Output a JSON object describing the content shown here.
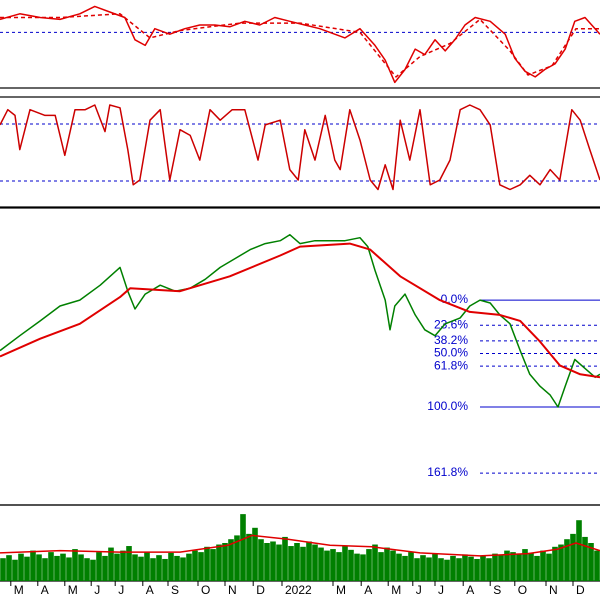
{
  "chart_data": [
    {
      "type": "line",
      "xlim": [
        0,
        100
      ],
      "ylim": [
        40,
        88
      ],
      "hlines": [
        70
      ],
      "hline_color": "#0000cc",
      "series": [
        {
          "color": "#e00000",
          "dashed": false,
          "x": [
            0,
            3.3,
            6.7,
            10,
            13.3,
            15.8,
            18.3,
            20.8,
            22.5,
            24.2,
            25.8,
            28.3,
            30.8,
            33.3,
            35.8,
            38.3,
            40.8,
            43.3,
            45.8,
            48.3,
            50.8,
            53.3,
            55.8,
            57.5,
            60,
            62.5,
            64.2,
            65.8,
            67.5,
            69.2,
            70.8,
            72.5,
            74.2,
            75.8,
            77.5,
            79.2,
            81.7,
            84.2,
            85.8,
            87.5,
            89.2,
            90.8,
            92.5,
            94.2,
            95.8,
            97.5,
            100
          ],
          "values": [
            77,
            80,
            78,
            77,
            80,
            84,
            81,
            78,
            66,
            63,
            72,
            69,
            72,
            74,
            74,
            73,
            76,
            74,
            78,
            76,
            74,
            72,
            69,
            67,
            72,
            63,
            55,
            43,
            50,
            61,
            58,
            66,
            60,
            66,
            74,
            78,
            76,
            69,
            56,
            49,
            46,
            50,
            53,
            61,
            76,
            78,
            69
          ]
        },
        {
          "color": "#e00000",
          "dashed": true,
          "x": [
            0,
            10,
            20,
            25,
            30,
            40,
            50,
            60,
            63,
            66,
            70,
            75,
            80,
            85,
            88,
            92,
            96,
            100
          ],
          "values": [
            78,
            78,
            80,
            67,
            71,
            75,
            75,
            70,
            58,
            46,
            57,
            64,
            77,
            60,
            47,
            52,
            72,
            72
          ]
        }
      ]
    },
    {
      "type": "line",
      "xlim": [
        0,
        100
      ],
      "ylim": [
        -7.4,
        108.4
      ],
      "hlines": [
        20,
        80
      ],
      "hline_color": "#0000cc",
      "series": [
        {
          "color": "#cc0000",
          "dashed": false,
          "x": [
            0,
            1.3,
            2.5,
            3.3,
            5,
            7.5,
            9.2,
            10.8,
            12.5,
            14.2,
            15.8,
            17.5,
            18.3,
            20,
            21.3,
            22.2,
            23.3,
            25,
            26.7,
            28.3,
            30,
            31.7,
            33.3,
            35,
            36.7,
            38.7,
            40.8,
            43,
            44.2,
            46.7,
            48.3,
            49.7,
            50.8,
            52.5,
            54.2,
            55.8,
            56.7,
            58.3,
            60,
            61.7,
            63,
            64.2,
            65.5,
            66.7,
            68.3,
            70,
            71.7,
            73.3,
            75,
            76.7,
            78.3,
            80,
            81.7,
            83.3,
            85,
            86.7,
            88.3,
            90,
            91.7,
            93.3,
            95.3,
            96.7,
            98.3,
            100
          ],
          "values": [
            79,
            95,
            89,
            53,
            95,
            89,
            89,
            47,
            95,
            95,
            100,
            72,
            100,
            97,
            53,
            16,
            21,
            84,
            95,
            21,
            74,
            68,
            42,
            95,
            84,
            95,
            95,
            42,
            79,
            84,
            32,
            21,
            74,
            42,
            89,
            42,
            32,
            95,
            63,
            21,
            11,
            37,
            11,
            84,
            42,
            95,
            16,
            21,
            42,
            95,
            100,
            95,
            79,
            16,
            11,
            16,
            26,
            16,
            32,
            21,
            95,
            84,
            53,
            21
          ]
        }
      ]
    },
    {
      "type": "line",
      "xlim": [
        0,
        100
      ],
      "ylim": [
        0,
        100
      ],
      "series": [
        {
          "color": "#008000",
          "dashed": false,
          "x": [
            0,
            3.3,
            6.7,
            10,
            13.3,
            16.7,
            20,
            21.3,
            22.5,
            24.2,
            26.7,
            29.2,
            31.7,
            34.2,
            36.7,
            39.2,
            41.7,
            44.2,
            46.7,
            48.3,
            50,
            52.5,
            55,
            57.5,
            60,
            61.3,
            62.5,
            64.2,
            65,
            65.8,
            67.5,
            69.2,
            70.8,
            72.5,
            74.2,
            76.7,
            78.3,
            80,
            81.7,
            83.3,
            85,
            86.7,
            88.3,
            90,
            91.7,
            93,
            94.2,
            95.8,
            97.5,
            99.2,
            100
          ],
          "values": [
            52,
            57,
            62,
            67,
            69,
            74,
            80,
            72,
            66,
            71,
            74,
            72,
            73,
            76,
            80,
            83,
            86,
            88,
            89,
            91,
            88,
            89,
            89,
            89,
            90,
            87,
            79,
            69,
            59,
            67,
            71,
            64,
            59,
            57,
            61,
            63,
            67,
            69,
            68,
            64,
            61,
            52,
            44,
            40,
            37,
            33,
            40,
            49,
            46,
            43,
            44
          ]
        },
        {
          "color": "#e00000",
          "dashed": false,
          "width": 2,
          "x": [
            0,
            6.7,
            13.3,
            20,
            21.7,
            30,
            38.3,
            46.7,
            50,
            58.3,
            61.7,
            66.7,
            73.3,
            78.3,
            83.3,
            86.7,
            90,
            93.3,
            96.7,
            100
          ],
          "values": [
            50,
            56,
            61,
            70,
            73,
            72,
            77,
            84,
            87,
            88,
            86,
            77,
            69,
            65,
            64,
            62,
            55,
            47,
            44,
            43
          ]
        }
      ],
      "fibonacci": {
        "high": 69,
        "low": 33,
        "start": 80,
        "color": "#0000cc",
        "levels": [
          {
            "value": 0,
            "label": "0.0%"
          },
          {
            "value": 23.6,
            "label": "23.6%"
          },
          {
            "value": 38.2,
            "label": "38.2%"
          },
          {
            "value": 50,
            "label": "50.0%"
          },
          {
            "value": 61.8,
            "label": "61.8%"
          },
          {
            "value": 100,
            "label": "100.0%"
          },
          {
            "value": 161.8,
            "label": "161.8%"
          }
        ],
        "level_dashed": [
          false,
          true,
          true,
          true,
          true,
          false,
          true
        ]
      }
    },
    {
      "type": "bar",
      "xlim": [
        0,
        100
      ],
      "ylim": [
        0,
        100
      ],
      "color": "#008000",
      "x": [
        0.5,
        1.5,
        2.5,
        3.5,
        4.5,
        5.5,
        6.5,
        7.5,
        8.5,
        9.5,
        10.5,
        11.5,
        12.5,
        13.5,
        14.5,
        15.5,
        16.5,
        17.5,
        18.5,
        19.5,
        20.5,
        21.5,
        22.5,
        23.5,
        24.5,
        25.5,
        26.5,
        27.5,
        28.5,
        29.5,
        30.5,
        31.5,
        32.5,
        33.5,
        34.5,
        35.5,
        36.5,
        37.5,
        38.5,
        39.5,
        40.5,
        41.5,
        42.5,
        43.5,
        44.5,
        45.5,
        46.5,
        47.5,
        48.5,
        49.5,
        50.5,
        51.5,
        52.5,
        53.5,
        54.5,
        55.5,
        56.5,
        57.5,
        58.5,
        59.5,
        60.5,
        61.5,
        62.5,
        63.5,
        64.5,
        65.5,
        66.5,
        67.5,
        68.5,
        69.5,
        70.5,
        71.5,
        72.5,
        73.5,
        74.5,
        75.5,
        76.5,
        77.5,
        78.5,
        79.5,
        80.5,
        81.5,
        82.5,
        83.5,
        84.5,
        85.5,
        86.5,
        87.5,
        88.5,
        89.5,
        90.5,
        91.5,
        92.5,
        93.5,
        94.5,
        95.5,
        96.5,
        97.5,
        98.5,
        99.5
      ],
      "values": [
        30,
        34,
        28,
        36,
        32,
        40,
        35,
        30,
        38,
        33,
        36,
        31,
        42,
        35,
        30,
        28,
        38,
        33,
        44,
        36,
        40,
        46,
        35,
        32,
        38,
        30,
        34,
        29,
        37,
        33,
        31,
        36,
        40,
        38,
        45,
        42,
        48,
        50,
        55,
        60,
        88,
        62,
        70,
        55,
        50,
        52,
        48,
        58,
        46,
        50,
        45,
        52,
        48,
        44,
        40,
        42,
        38,
        46,
        41,
        36,
        35,
        42,
        48,
        38,
        44,
        40,
        36,
        33,
        38,
        30,
        34,
        31,
        36,
        30,
        28,
        33,
        30,
        35,
        32,
        29,
        33,
        30,
        36,
        34,
        40,
        38,
        35,
        42,
        37,
        33,
        40,
        36,
        45,
        48,
        55,
        62,
        80,
        58,
        50,
        40
      ],
      "overlay": {
        "color": "#e00000",
        "x": [
          0,
          10,
          20,
          30,
          38,
          42,
          48,
          55,
          62,
          70,
          80,
          88,
          93,
          96,
          100
        ],
        "values": [
          37,
          40,
          38,
          38,
          47,
          60,
          55,
          47,
          45,
          37,
          33,
          36,
          42,
          50,
          40
        ]
      },
      "xticks": [
        {
          "value": 1.8,
          "label": "M"
        },
        {
          "value": 6.3,
          "label": "A"
        },
        {
          "value": 10.8,
          "label": "M"
        },
        {
          "value": 15.2,
          "label": "J"
        },
        {
          "value": 19.2,
          "label": "J"
        },
        {
          "value": 23.8,
          "label": "A"
        },
        {
          "value": 28,
          "label": "S"
        },
        {
          "value": 33,
          "label": "O"
        },
        {
          "value": 37.5,
          "label": "N"
        },
        {
          "value": 42.2,
          "label": "D"
        },
        {
          "value": 47,
          "label": "2022"
        },
        {
          "value": 55.5,
          "label": "M"
        },
        {
          "value": 60.2,
          "label": "A"
        },
        {
          "value": 64.7,
          "label": "M"
        },
        {
          "value": 68.8,
          "label": "J"
        },
        {
          "value": 72.5,
          "label": "J"
        },
        {
          "value": 77.2,
          "label": "A"
        },
        {
          "value": 81.7,
          "label": "S"
        },
        {
          "value": 85.8,
          "label": "O"
        },
        {
          "value": 91,
          "label": "N"
        },
        {
          "value": 95.5,
          "label": "D"
        }
      ]
    }
  ]
}
